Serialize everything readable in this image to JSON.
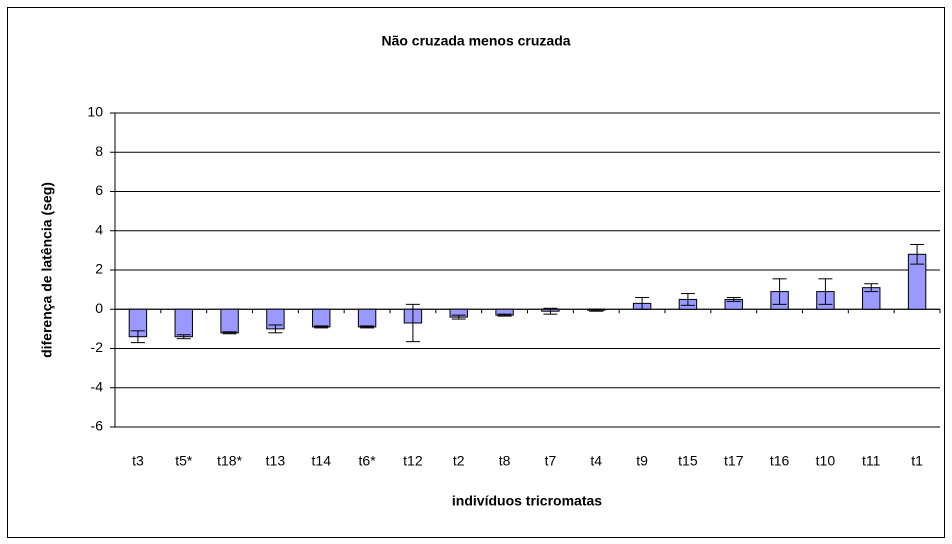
{
  "chart_data": {
    "type": "bar",
    "title": "Não cruzada menos cruzada",
    "x_label": "indivíduos tricromatas",
    "y_label": "diferença de latência (seg)",
    "categories": [
      "t3",
      "t5*",
      "t18*",
      "t13",
      "t14",
      "t6*",
      "t12",
      "t2",
      "t8",
      "t7",
      "t4",
      "t9",
      "t15",
      "t17",
      "t16",
      "t10",
      "t11",
      "t1"
    ],
    "values": [
      -1.4,
      -1.4,
      -1.2,
      -1.0,
      -0.9,
      -0.9,
      -0.7,
      -0.4,
      -0.3,
      -0.1,
      -0.05,
      0.3,
      0.5,
      0.5,
      0.9,
      0.9,
      1.1,
      2.8
    ],
    "errors": [
      0.3,
      0.1,
      0.05,
      0.2,
      0.05,
      0.05,
      0.95,
      0.1,
      0.05,
      0.15,
      0.05,
      0.3,
      0.3,
      0.1,
      0.65,
      0.65,
      0.2,
      0.5
    ],
    "color": "#9999ff",
    "ylim": [
      -6,
      10
    ],
    "yticks": [
      -6,
      -4,
      -2,
      0,
      2,
      4,
      6,
      8,
      10
    ],
    "grid": true
  }
}
